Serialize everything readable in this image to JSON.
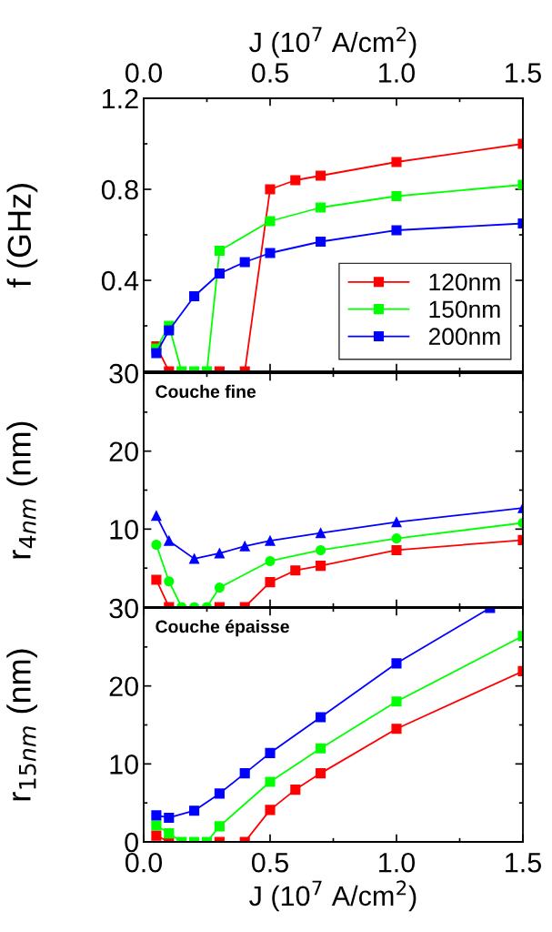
{
  "chart_data": [
    {
      "type": "line",
      "ylabel": "f (GHz)",
      "x2label": "J (10$^{7}$ A/cm$^{2}$)",
      "xlim": [
        0,
        1.5
      ],
      "x2lim": [
        0,
        1.5
      ],
      "x2ticks": [
        {
          "value": 0,
          "label": "0.0"
        },
        0.5,
        {
          "value": 1,
          "label": "1.0"
        },
        1.5
      ],
      "ylim": [
        0,
        1.2
      ],
      "yticks": [
        {
          "value": 0,
          "label": null
        },
        0.4,
        0.8,
        1.2
      ],
      "tick_labels": "y",
      "legend": "bottom right",
      "marker": "square",
      "series": [
        {
          "name": "120nm",
          "color": "#ff0000",
          "x": [
            0.05,
            0.1,
            0.3,
            0.4,
            0.5,
            0.6,
            0.7,
            1.0,
            1.5
          ],
          "values": [
            0.11,
            0,
            0,
            0,
            0.8,
            0.84,
            0.86,
            0.92,
            1.0
          ]
        },
        {
          "name": "150nm",
          "color": "#00ff00",
          "x": [
            0.05,
            0.1,
            0.15,
            0.2,
            0.25,
            0.3,
            0.5,
            0.7,
            1.0,
            1.5
          ],
          "values": [
            0.1,
            0.2,
            0,
            0,
            0,
            0.53,
            0.66,
            0.72,
            0.77,
            0.82
          ]
        },
        {
          "name": "200nm",
          "color": "#0000ff",
          "x": [
            0.05,
            0.1,
            0.2,
            0.3,
            0.4,
            0.5,
            0.7,
            1.0,
            1.5
          ],
          "values": [
            0.08,
            0.18,
            0.33,
            0.43,
            0.48,
            0.52,
            0.57,
            0.62,
            0.65
          ]
        }
      ]
    },
    {
      "type": "line",
      "ylabel": "r$_{4nm}$ (nm)",
      "annotations": [
        "Couche fine"
      ],
      "xlim": [
        0,
        1.5
      ],
      "ylim": [
        0,
        30
      ],
      "yticks": [
        {
          "value": 0,
          "label": null
        },
        10,
        20,
        30
      ],
      "tick_labels": "y",
      "series": [
        {
          "color": "#ff0000",
          "marker": "square",
          "x": [
            0.05,
            0.1,
            0.3,
            0.4,
            0.5,
            0.6,
            0.7,
            1.0,
            1.5
          ],
          "values": [
            3.5,
            0,
            0,
            0,
            3.2,
            4.7,
            5.3,
            7.3,
            8.6
          ]
        },
        {
          "color": "#00ff00",
          "marker": "circle",
          "x": [
            0.05,
            0.1,
            0.15,
            0.2,
            0.25,
            0.3,
            0.5,
            0.7,
            1.0,
            1.5
          ],
          "values": [
            8.0,
            3.3,
            0,
            0,
            0,
            2.5,
            5.9,
            7.3,
            8.8,
            10.8
          ]
        },
        {
          "color": "#0000ff",
          "marker": "triangle",
          "x": [
            0.05,
            0.1,
            0.2,
            0.3,
            0.4,
            0.5,
            0.7,
            1.0,
            1.5
          ],
          "values": [
            11.7,
            8.5,
            6.2,
            6.9,
            7.8,
            8.5,
            9.5,
            10.9,
            12.7
          ]
        }
      ]
    },
    {
      "type": "line",
      "ylabel": "r$_{15nm}$ (nm)",
      "xlabel": "J (10$^{7}$ A/cm$^{2}$)",
      "annotations": [
        "Couche épaisse"
      ],
      "xlim": [
        0,
        1.5
      ],
      "xticks": [
        {
          "value": 0,
          "label": "0.0"
        },
        0.5,
        {
          "value": 1,
          "label": "1.0"
        },
        1.5
      ],
      "ylim": [
        0,
        30
      ],
      "yticks": [
        0,
        10,
        20,
        30
      ],
      "marker": "square",
      "series": [
        {
          "color": "#ff0000",
          "x": [
            0.05,
            0.1,
            0.3,
            0.4,
            0.5,
            0.6,
            0.7,
            1.0,
            1.5
          ],
          "values": [
            0.8,
            0,
            0,
            0,
            4.1,
            6.7,
            8.8,
            14.5,
            21.9
          ]
        },
        {
          "color": "#00ff00",
          "x": [
            0.05,
            0.1,
            0.15,
            0.2,
            0.25,
            0.3,
            0.5,
            0.7,
            1.0,
            1.5
          ],
          "values": [
            2.1,
            1.1,
            0,
            0,
            0,
            2.0,
            7.7,
            12.0,
            18.0,
            26.4
          ]
        },
        {
          "color": "#0000ff",
          "x": [
            0.05,
            0.1,
            0.2,
            0.3,
            0.4,
            0.5,
            0.7,
            1.0,
            1.37
          ],
          "values": [
            3.4,
            3.1,
            4.0,
            6.2,
            8.8,
            11.4,
            16.0,
            22.9,
            30
          ]
        }
      ]
    }
  ]
}
